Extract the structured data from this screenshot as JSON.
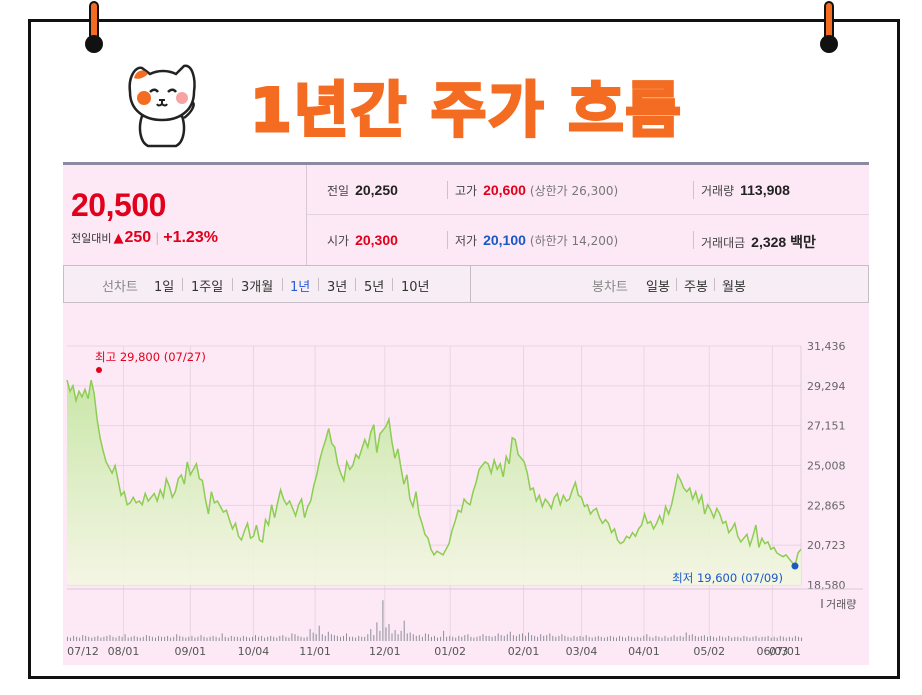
{
  "headline": "1년간 주가 흐름",
  "colors": {
    "accent": "#f36c21",
    "up": "#e0001b",
    "down": "#1a58c4",
    "line": "#8ccd52",
    "panel": "#fde9f6"
  },
  "summary": {
    "price": "20,500",
    "change_label": "전일대비",
    "change_arrow": "▲",
    "change_amount": "250",
    "change_pct": "+1.23%",
    "stats": {
      "prev_close": {
        "label": "전일",
        "value": "20,250"
      },
      "high": {
        "label": "고가",
        "value": "20,600",
        "limit": "(상한가 26,300)"
      },
      "volume": {
        "label": "거래량",
        "value": "113,908"
      },
      "open": {
        "label": "시가",
        "value": "20,300"
      },
      "low": {
        "label": "저가",
        "value": "20,100",
        "limit": "(하한가 14,200)"
      },
      "trade_value": {
        "label": "거래대금",
        "value": "2,328 백만"
      }
    }
  },
  "toolbar": {
    "line_chart_label": "선차트",
    "ranges": [
      "1일",
      "1주일",
      "3개월",
      "1년",
      "3년",
      "5년",
      "10년"
    ],
    "active_range": "1년",
    "candle_chart_label": "봉차트",
    "candle_periods": [
      "일봉",
      "주봉",
      "월봉"
    ]
  },
  "chart_data": {
    "type": "area",
    "x_tick_labels": [
      "07/12",
      "08/01",
      "09/01",
      "10/04",
      "11/01",
      "12/01",
      "01/02",
      "02/01",
      "03/04",
      "04/01",
      "05/02",
      "06/03",
      "07/01"
    ],
    "y_tick_labels": [
      "31,436",
      "29,294",
      "27,151",
      "25,008",
      "22,865",
      "20,723",
      "18,580"
    ],
    "ylim": [
      18580,
      31436
    ],
    "max_annotation": "최고 29,800 (07/27)",
    "min_annotation": "최저 19,600 (07/09)",
    "volume_label": "거래량",
    "grid": true,
    "series": [
      {
        "values": [
          29600,
          29000,
          29300,
          28500,
          29000,
          28700,
          29100,
          28600,
          29600,
          28900,
          27500,
          26500,
          25800,
          25200,
          24900,
          24600,
          25000,
          24200,
          23400,
          23600,
          22900,
          23000,
          23300,
          23000,
          23100,
          22900,
          23500,
          23100,
          23300,
          23500,
          23100,
          23700,
          23300,
          24300,
          23900,
          23300,
          23600,
          24300,
          24500,
          24000,
          25200,
          24500,
          24800,
          25100,
          24300,
          24200,
          23200,
          22400,
          23600,
          23000,
          23100,
          22800,
          22500,
          22600,
          22100,
          21600,
          21900,
          21200,
          21000,
          21500,
          21900,
          21100,
          21200,
          21800,
          21000,
          20900,
          22100,
          21800,
          22900,
          22200,
          23000,
          23700,
          23200,
          22900,
          23100,
          22700,
          22300,
          22900,
          23200,
          22200,
          22800,
          23100,
          23900,
          24500,
          25300,
          25900,
          26400,
          27000,
          26200,
          26000,
          25100,
          24600,
          24200,
          25200,
          24800,
          25000,
          25600,
          25400,
          25900,
          26400,
          26000,
          26800,
          27200,
          25700,
          26700,
          26900,
          27100,
          27500,
          26300,
          25400,
          25900,
          24900,
          24000,
          24500,
          23200,
          22800,
          23600,
          22400,
          21900,
          21300,
          21100,
          20500,
          20200,
          20400,
          20300,
          20200,
          20500,
          20800,
          21500,
          22000,
          22600,
          22500,
          23200,
          23000,
          22900,
          23600,
          24100,
          24800,
          25000,
          25200,
          25100,
          24600,
          25300,
          24800,
          25100,
          24400,
          25500,
          25100,
          26500,
          26400,
          25600,
          25400,
          25200,
          24600,
          23700,
          23800,
          23100,
          23400,
          22800,
          23200,
          23000,
          22700,
          23300,
          23500,
          22900,
          23400,
          23100,
          23200,
          23700,
          24100,
          23400,
          23300,
          22800,
          22900,
          22400,
          22600,
          22700,
          22200,
          21900,
          22100,
          21900,
          21400,
          21600,
          21000,
          20800,
          20900,
          21200,
          21100,
          21400,
          21200,
          21600,
          21800,
          22400,
          21900,
          22000,
          21600,
          21900,
          22300,
          21900,
          22800,
          22400,
          22900,
          23700,
          24500,
          24200,
          23800,
          23600,
          23800,
          23200,
          23600,
          23000,
          23400,
          22400,
          22900,
          22600,
          22200,
          22700,
          22400,
          21900,
          22000,
          21400,
          21600,
          21900,
          21200,
          20900,
          21100,
          21300,
          20700,
          21200,
          21800,
          20600,
          21100,
          20800,
          20900,
          20500,
          20600,
          20300,
          20200,
          20100,
          20200,
          20000,
          19800,
          19600,
          20300,
          20500
        ]
      }
    ],
    "volume": [
      5,
      4,
      6,
      5,
      4,
      7,
      6,
      5,
      4,
      5,
      6,
      4,
      5,
      6,
      7,
      5,
      4,
      6,
      5,
      8,
      4,
      5,
      6,
      5,
      4,
      5,
      7,
      6,
      5,
      4,
      6,
      5,
      5,
      6,
      4,
      5,
      8,
      6,
      5,
      4,
      5,
      6,
      4,
      5,
      7,
      5,
      4,
      5,
      6,
      5,
      4,
      9,
      5,
      4,
      6,
      5,
      5,
      4,
      6,
      5,
      4,
      5,
      7,
      5,
      6,
      4,
      5,
      6,
      5,
      4,
      6,
      7,
      5,
      4,
      9,
      8,
      6,
      5,
      4,
      5,
      14,
      10,
      8,
      18,
      8,
      6,
      11,
      8,
      7,
      6,
      5,
      6,
      9,
      5,
      5,
      4,
      6,
      5,
      5,
      8,
      14,
      7,
      22,
      12,
      48,
      16,
      20,
      9,
      13,
      8,
      12,
      24,
      9,
      10,
      8,
      6,
      7,
      5,
      9,
      8,
      5,
      6,
      4,
      5,
      12,
      5,
      6,
      5,
      4,
      6,
      5,
      7,
      8,
      5,
      4,
      5,
      6,
      8,
      6,
      6,
      5,
      6,
      9,
      7,
      6,
      8,
      11,
      7,
      6,
      8,
      9,
      6,
      10,
      7,
      6,
      5,
      8,
      6,
      7,
      9,
      6,
      5,
      6,
      8,
      6,
      5,
      4,
      6,
      5,
      6,
      5,
      7,
      5,
      4,
      5,
      6,
      5,
      4,
      5,
      6,
      5,
      4,
      6,
      5,
      4,
      6,
      5,
      4,
      5,
      4,
      6,
      8,
      5,
      4,
      6,
      5,
      4,
      6,
      4,
      5,
      7,
      5,
      6,
      5,
      10,
      7,
      8,
      6,
      5,
      6,
      7,
      5,
      6,
      5,
      4,
      6,
      5,
      4,
      6,
      4,
      5,
      5,
      4,
      6,
      5,
      4,
      5,
      6,
      4,
      5,
      5,
      6,
      4,
      5,
      4,
      6,
      5,
      4,
      5,
      4,
      6,
      5,
      4
    ]
  }
}
